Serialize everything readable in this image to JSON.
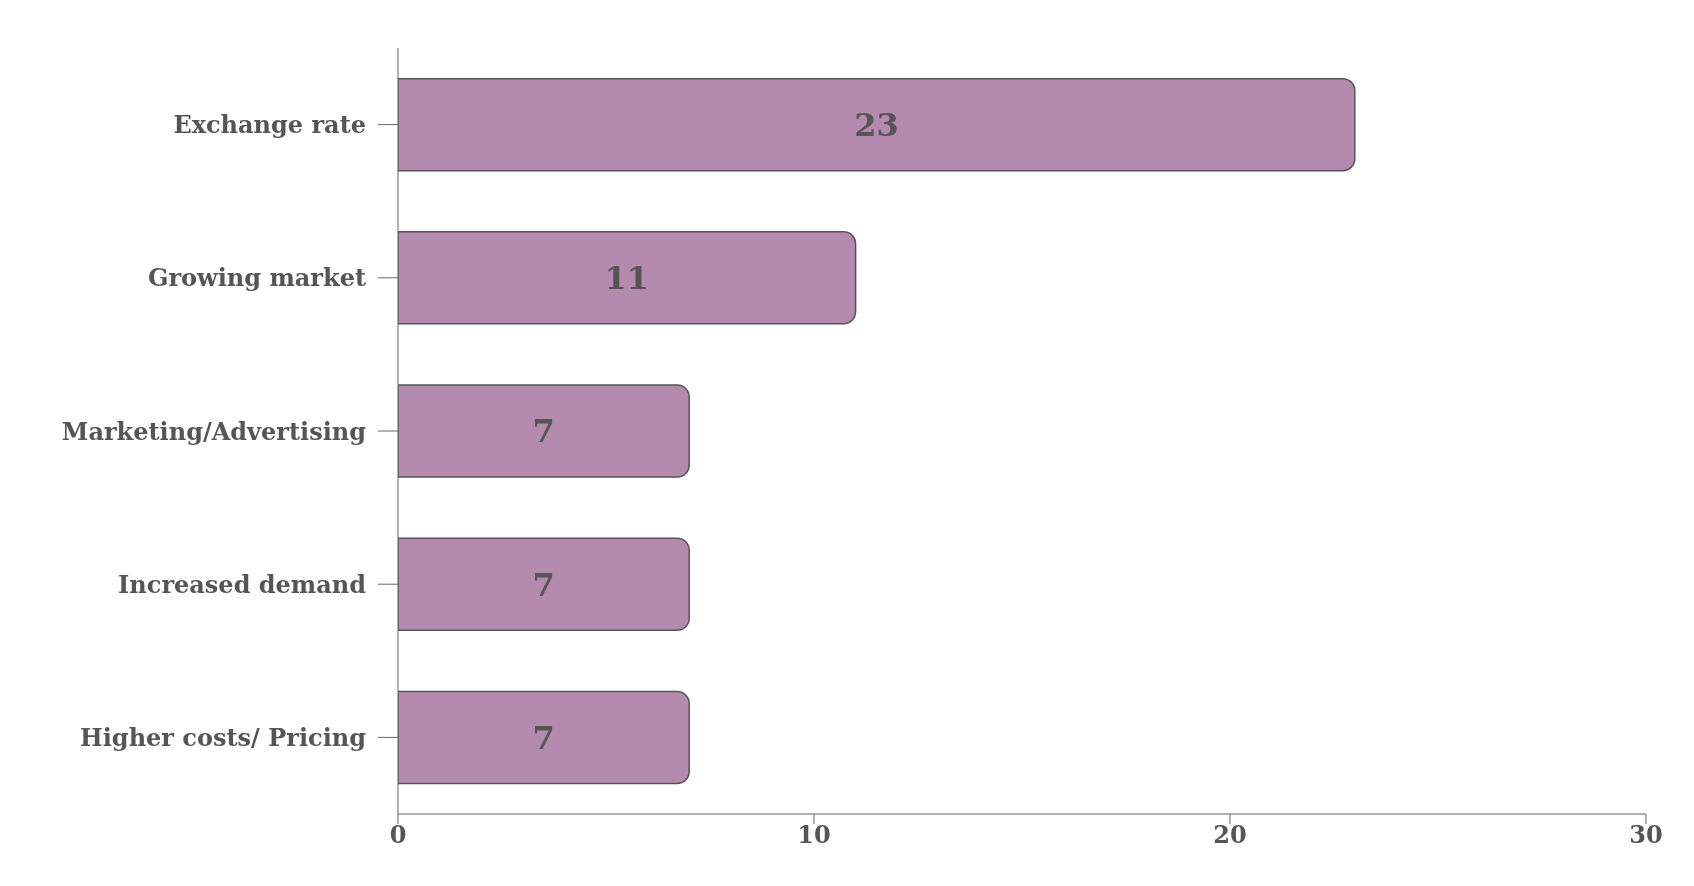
{
  "chart_data": {
    "type": "bar",
    "orientation": "horizontal",
    "categories": [
      "Exchange rate",
      "Growing market",
      "Marketing/Advertising",
      "Increased demand",
      "Higher costs/ Pricing"
    ],
    "values": [
      23,
      11,
      7,
      7,
      7
    ],
    "color": "#b48aae",
    "xlim": [
      0,
      30
    ],
    "xticks": [
      0,
      10,
      20,
      30
    ],
    "data_labels": true,
    "grid": false
  }
}
